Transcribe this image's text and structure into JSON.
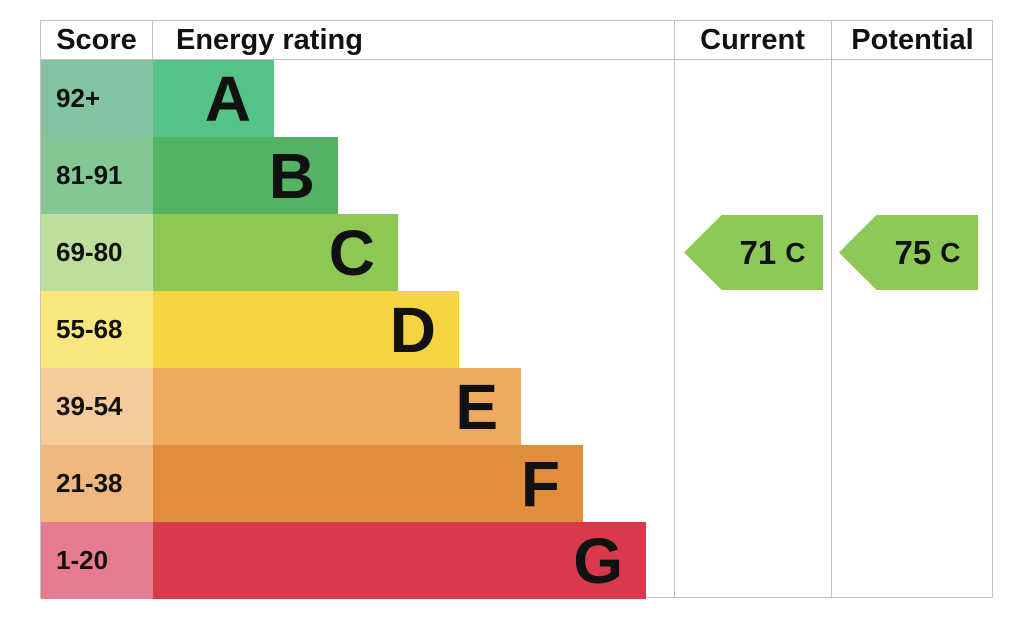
{
  "header": {
    "score": "Score",
    "energy_rating": "Energy rating",
    "current": "Current",
    "potential": "Potential"
  },
  "bands": [
    {
      "score_label": "92+",
      "letter": "A",
      "bar_color": "#55c287",
      "score_bg": "#82c3a0"
    },
    {
      "score_label": "81-91",
      "letter": "B",
      "bar_color": "#52b363",
      "score_bg": "#84c795"
    },
    {
      "score_label": "69-80",
      "letter": "C",
      "bar_color": "#8ec854",
      "score_bg": "#bedf9b"
    },
    {
      "score_label": "55-68",
      "letter": "D",
      "bar_color": "#f4d440",
      "score_bg": "#f8e77e"
    },
    {
      "score_label": "39-54",
      "letter": "E",
      "bar_color": "#efaa62",
      "score_bg": "#f4cc9c"
    },
    {
      "score_label": "21-38",
      "letter": "F",
      "bar_color": "#e18e3b",
      "score_bg": "#edb77d"
    },
    {
      "score_label": "1-20",
      "letter": "G",
      "bar_color": "#d93a4b",
      "score_bg": "#e67b8f"
    }
  ],
  "current_arrow": {
    "value": "71",
    "letter": "C"
  },
  "potential_arrow": {
    "value": "75",
    "letter": "C"
  },
  "colors": {
    "arrow_fill": "#8dc957",
    "border": "#c3c3c3",
    "text": "#111111"
  },
  "chart_data": {
    "type": "table",
    "title": "Energy rating (EPC)",
    "columns": [
      "Score",
      "Energy rating",
      "Current",
      "Potential"
    ],
    "bands": [
      {
        "letter": "A",
        "score_range": "92+",
        "color": "#55c287"
      },
      {
        "letter": "B",
        "score_range": "81-91",
        "color": "#52b363"
      },
      {
        "letter": "C",
        "score_range": "69-80",
        "color": "#8ec854"
      },
      {
        "letter": "D",
        "score_range": "55-68",
        "color": "#f4d440"
      },
      {
        "letter": "E",
        "score_range": "39-54",
        "color": "#efaa62"
      },
      {
        "letter": "F",
        "score_range": "21-38",
        "color": "#e18e3b"
      },
      {
        "letter": "G",
        "score_range": "1-20",
        "color": "#d93a4b"
      }
    ],
    "current": {
      "score": 71,
      "band": "C"
    },
    "potential": {
      "score": 75,
      "band": "C"
    },
    "layout_hints": {
      "bar_lengths_increase_from_A_to_G": true,
      "arrows_point_left": true,
      "arrow_row": "C"
    }
  }
}
